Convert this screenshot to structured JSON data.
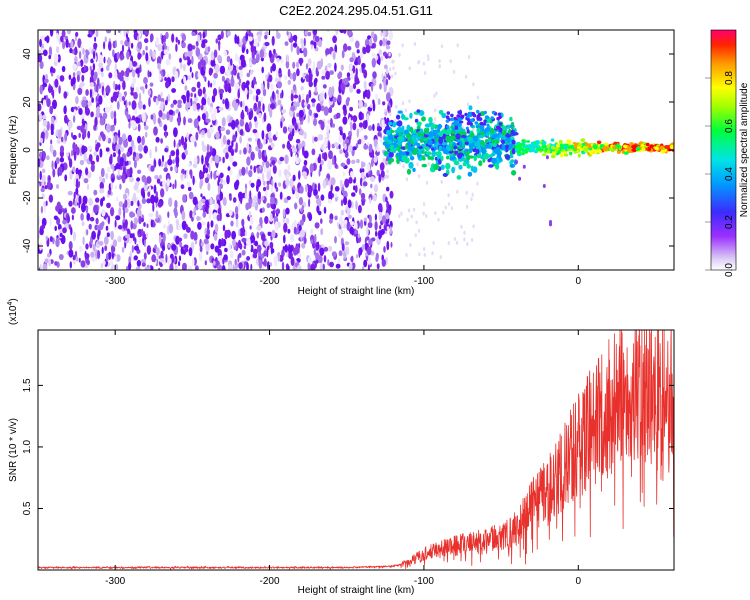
{
  "figure": {
    "title": "C2E2.2024.295.04.51.G11"
  },
  "chart_data": [
    {
      "type": "heatmap",
      "title": "C2E2.2024.295.04.51.G11",
      "xlabel": "Height of straight line (km)",
      "ylabel": "Frequency (Hz)",
      "xlim": [
        -350,
        62
      ],
      "ylim": [
        -50,
        50
      ],
      "xticks": [
        -300,
        -200,
        -100,
        0
      ],
      "yticks": [
        -40,
        -20,
        0,
        20,
        40
      ],
      "grid": false,
      "colorbar": {
        "label": "Normalized spectral amplitude",
        "range": [
          0,
          1
        ],
        "ticks": [
          0.0,
          0.2,
          0.4,
          0.6,
          0.8
        ],
        "colormap": "rainbow (white-purple-blue-cyan-green-yellow-red)"
      },
      "regions": [
        {
          "x_range": [
            -350,
            -125
          ],
          "freq_range": [
            -50,
            50
          ],
          "amplitude": "low (0.0-0.2), uniform noise"
        },
        {
          "x_range": [
            -125,
            -40
          ],
          "freq_range": [
            -12,
            15
          ],
          "amplitude": "moderate (0.2-0.5)",
          "center_freq_hz": 3
        },
        {
          "x_range": [
            -40,
            62
          ],
          "freq_range": [
            -2,
            5
          ],
          "amplitude": "high (0.6-1.0)",
          "center_freq_hz": 1
        }
      ],
      "colors": {
        "noise": "#8a2be2",
        "signal_mid": "#00e0e0",
        "signal_high": "#ff0000"
      }
    },
    {
      "type": "line",
      "title": "",
      "xlabel": "Height of straight line (km)",
      "ylabel": "SNR (10 * v/v)",
      "multiplier_label": "(x10",
      "multiplier_exp": "4",
      "xlim": [
        -350,
        62
      ],
      "ylim": [
        0,
        1.95
      ],
      "xticks": [
        -300,
        -200,
        -100,
        0
      ],
      "yticks": [
        0.5,
        1.0,
        1.5
      ],
      "grid": false,
      "series": [
        {
          "color": "#e8312c",
          "x": [
            -350,
            -300,
            -250,
            -200,
            -150,
            -120,
            -110,
            -100,
            -90,
            -80,
            -70,
            -60,
            -50,
            -40,
            -35,
            -30,
            -20,
            -10,
            0,
            10,
            20,
            30,
            40,
            50,
            62
          ],
          "y": [
            0.02,
            0.02,
            0.02,
            0.02,
            0.02,
            0.03,
            0.06,
            0.13,
            0.16,
            0.19,
            0.21,
            0.23,
            0.26,
            0.33,
            0.42,
            0.5,
            0.62,
            0.78,
            0.98,
            1.15,
            1.27,
            1.35,
            1.42,
            1.38,
            1.4
          ]
        }
      ]
    }
  ]
}
